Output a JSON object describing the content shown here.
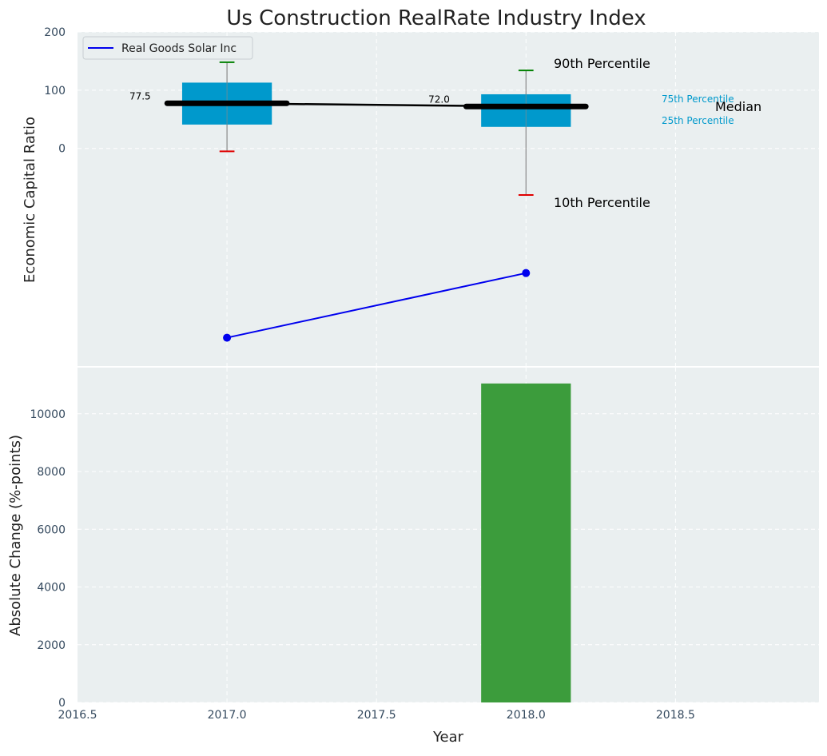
{
  "chart_data": {
    "type": "bar",
    "title": "Us Construction RealRate Industry Index",
    "xlabel": "Year",
    "xticks": [
      "2016.5",
      "2017.0",
      "2017.5",
      "2018.0",
      "2018.5"
    ],
    "xlim": [
      2016.5,
      2018.98
    ],
    "grid": true,
    "top": {
      "ylabel": "Economic Capital Ratio",
      "yticks": [
        "200",
        "100",
        "0"
      ],
      "ylim": [
        -375,
        200
      ],
      "legend_placement": "top-left",
      "legend_entries": [
        "Real Goods Solar Inc"
      ],
      "percentile_boxes": [
        {
          "x": 2017.0,
          "p10": -5,
          "p25": 41,
          "median": 77.5,
          "p75": 113,
          "p90": 148,
          "median_label": "77.5"
        },
        {
          "x": 2018.0,
          "p10": -80,
          "p25": 37,
          "median": 72.0,
          "p75": 93,
          "p90": 134,
          "median_label": "72.0"
        }
      ],
      "median_line": {
        "x": [
          2017.0,
          2018.0
        ],
        "y": [
          77.5,
          72.0
        ]
      },
      "company_series": {
        "name": "Real Goods Solar Inc",
        "x": [
          2017.0,
          2018.0
        ],
        "y": [
          -325,
          -214
        ]
      },
      "annotations": {
        "p90": "90th Percentile",
        "p10": "10th Percentile",
        "p75": "75th Percentile",
        "p25": "25th Percentile",
        "median": "Median"
      }
    },
    "bottom": {
      "ylabel": "Absolute Change (%-points)",
      "yticks": [
        "0",
        "2000",
        "4000",
        "6000",
        "8000",
        "10000"
      ],
      "ylim": [
        0,
        11600
      ],
      "x": [
        2018.0
      ],
      "values": [
        11050
      ]
    }
  },
  "colors": {
    "box": "#0099cc",
    "company": "#0000ee",
    "bar": "#3c9c3c",
    "p90_cap": "#008000",
    "p10_cap": "#e00000",
    "axes_bg": "#eaeff0",
    "tick_text": "#34495e"
  }
}
